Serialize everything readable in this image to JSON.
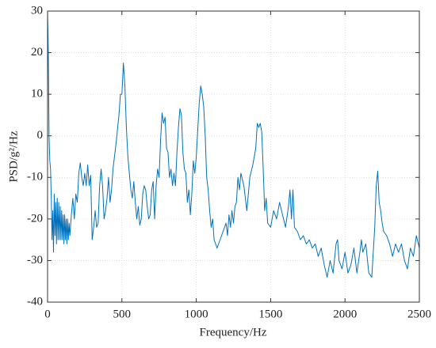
{
  "chart_data": {
    "type": "line",
    "xlabel": "Frequency/Hz",
    "ylabel": "PSD/g²/Hz",
    "color": "#0072bd",
    "grid": true,
    "xlim": [
      0,
      2500
    ],
    "xticks": [
      0,
      500,
      1000,
      1500,
      2000,
      2500
    ],
    "ylim": [
      -40,
      30
    ],
    "yticks": [
      -40,
      -30,
      -20,
      -10,
      0,
      10,
      20,
      30
    ],
    "x": [
      0,
      5,
      10,
      15,
      20,
      25,
      30,
      35,
      40,
      45,
      50,
      55,
      60,
      65,
      70,
      75,
      80,
      85,
      90,
      95,
      100,
      105,
      110,
      115,
      120,
      125,
      130,
      135,
      140,
      145,
      150,
      160,
      170,
      180,
      190,
      200,
      210,
      220,
      230,
      240,
      250,
      260,
      270,
      280,
      290,
      300,
      310,
      320,
      330,
      340,
      350,
      360,
      370,
      380,
      390,
      400,
      410,
      420,
      430,
      440,
      460,
      480,
      490,
      500,
      510,
      520,
      530,
      540,
      550,
      560,
      570,
      580,
      590,
      600,
      610,
      620,
      630,
      640,
      650,
      660,
      670,
      680,
      690,
      700,
      710,
      720,
      730,
      740,
      750,
      760,
      770,
      780,
      790,
      800,
      810,
      820,
      830,
      840,
      850,
      860,
      870,
      880,
      890,
      900,
      910,
      920,
      930,
      940,
      950,
      960,
      970,
      980,
      990,
      1000,
      1020,
      1030,
      1040,
      1050,
      1060,
      1070,
      1080,
      1090,
      1100,
      1110,
      1120,
      1140,
      1160,
      1180,
      1200,
      1210,
      1220,
      1230,
      1240,
      1250,
      1260,
      1270,
      1280,
      1290,
      1300,
      1320,
      1340,
      1360,
      1380,
      1400,
      1410,
      1420,
      1430,
      1440,
      1450,
      1460,
      1470,
      1480,
      1500,
      1520,
      1540,
      1560,
      1580,
      1600,
      1620,
      1630,
      1640,
      1650,
      1660,
      1680,
      1700,
      1720,
      1740,
      1760,
      1780,
      1800,
      1820,
      1840,
      1860,
      1880,
      1900,
      1920,
      1940,
      1950,
      1960,
      1980,
      2000,
      2020,
      2040,
      2060,
      2080,
      2100,
      2110,
      2120,
      2140,
      2160,
      2180,
      2200,
      2210,
      2220,
      2230,
      2240,
      2250,
      2260,
      2280,
      2300,
      2320,
      2340,
      2360,
      2380,
      2400,
      2420,
      2440,
      2460,
      2480,
      2500
    ],
    "values": [
      30,
      20,
      0,
      -6,
      -8,
      -15,
      -25,
      -18,
      -28,
      -14,
      -24,
      -16,
      -26,
      -15,
      -25,
      -16,
      -25,
      -17,
      -25,
      -18,
      -25,
      -19,
      -26,
      -19,
      -25,
      -20,
      -26,
      -20,
      -25,
      -21,
      -24,
      -19,
      -15,
      -20,
      -14,
      -16,
      -9,
      -6.5,
      -10,
      -12,
      -9,
      -12,
      -7,
      -12,
      -9.5,
      -25,
      -22,
      -18,
      -22,
      -21,
      -12,
      -8,
      -12,
      -20,
      -18,
      -15,
      -10,
      -16,
      -13,
      -8,
      -2,
      5,
      10,
      10,
      17.5,
      12,
      2,
      -5,
      -9,
      -13,
      -15,
      -11,
      -16,
      -20,
      -17,
      -21.5,
      -20,
      -14,
      -12,
      -13,
      -17,
      -20,
      -19,
      -13,
      -11,
      -20,
      -12,
      -8,
      -10,
      -1,
      5.5,
      3,
      4.5,
      -3,
      -4,
      -10,
      -8,
      -12,
      -9,
      -12,
      -4,
      2,
      6.5,
      5,
      -4,
      -8,
      -9,
      -16,
      -13,
      -19,
      -14,
      -6,
      -9,
      -5,
      8,
      12,
      10,
      7,
      0,
      -10,
      -13,
      -18,
      -22,
      -20,
      -25,
      -27,
      -25,
      -23,
      -21,
      -24,
      -19,
      -22,
      -18,
      -21,
      -17,
      -16,
      -10,
      -13,
      -9,
      -12,
      -18,
      -10,
      -7,
      -3,
      3,
      2,
      3,
      1,
      -8,
      -18,
      -15,
      -21,
      -22,
      -18,
      -20,
      -16,
      -19,
      -22,
      -17,
      -13,
      -20,
      -13,
      -22,
      -23,
      -25,
      -24,
      -26,
      -25,
      -27,
      -26,
      -29,
      -27,
      -31,
      -34,
      -30,
      -33,
      -26,
      -25,
      -30,
      -32,
      -28,
      -33,
      -31,
      -27,
      -33,
      -28,
      -25,
      -28,
      -26,
      -33,
      -34,
      -22,
      -12,
      -8.5,
      -16,
      -18,
      -21,
      -23,
      -24,
      -26,
      -29,
      -26,
      -28,
      -26,
      -30,
      -32,
      -27,
      -29,
      -24,
      -27
    ]
  }
}
